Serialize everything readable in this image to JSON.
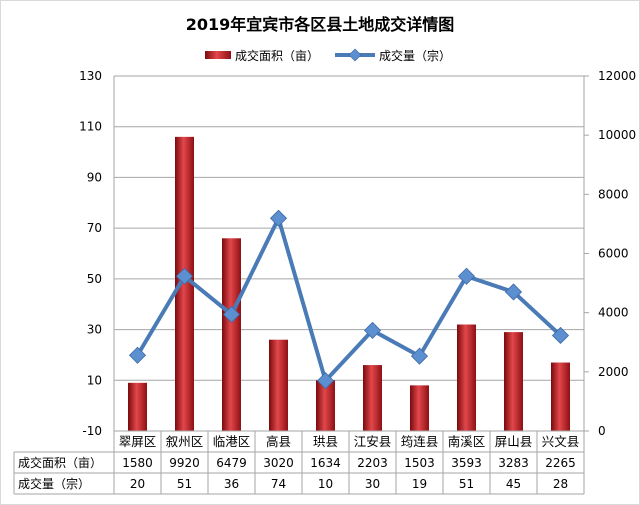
{
  "chart_data": {
    "type": "bar",
    "title": "2019年宜宾市各区县土地成交详情图",
    "categories": [
      "翠屏区",
      "叙州区",
      "临港区",
      "高县",
      "珙县",
      "江安县",
      "筠连县",
      "南溪区",
      "屏山县",
      "兴文县"
    ],
    "series": [
      {
        "name": "成交面积（亩）",
        "type": "bar",
        "axis": "left",
        "values": [
          1580,
          9920,
          6479,
          3020,
          1634,
          2203,
          1503,
          3593,
          3283,
          2265
        ],
        "bar_heights_on_left_axis": [
          9,
          106,
          66,
          26,
          10,
          16,
          8,
          32,
          29,
          17
        ]
      },
      {
        "name": "成交量（宗）",
        "type": "line",
        "axis": "right",
        "values": [
          20,
          51,
          36,
          74,
          10,
          30,
          19,
          51,
          45,
          28
        ],
        "plotted_on_right_axis": [
          2560,
          5230,
          3940,
          7190,
          1700,
          3400,
          2530,
          5230,
          4700,
          3230
        ]
      }
    ],
    "y_left": {
      "min": -10,
      "max": 130,
      "ticks": [
        -10,
        10,
        30,
        50,
        70,
        90,
        110,
        130
      ]
    },
    "y_right": {
      "min": 0,
      "max": 12000,
      "ticks": [
        0,
        2000,
        4000,
        6000,
        8000,
        10000,
        12000
      ]
    },
    "legend_position": "top-center",
    "grid": "horizontal",
    "data_table": true,
    "colors": {
      "bar": "#b81e23",
      "line": "#4a7bb7",
      "marker": "#5b8fd0",
      "grid": "#a6a6a6"
    }
  }
}
